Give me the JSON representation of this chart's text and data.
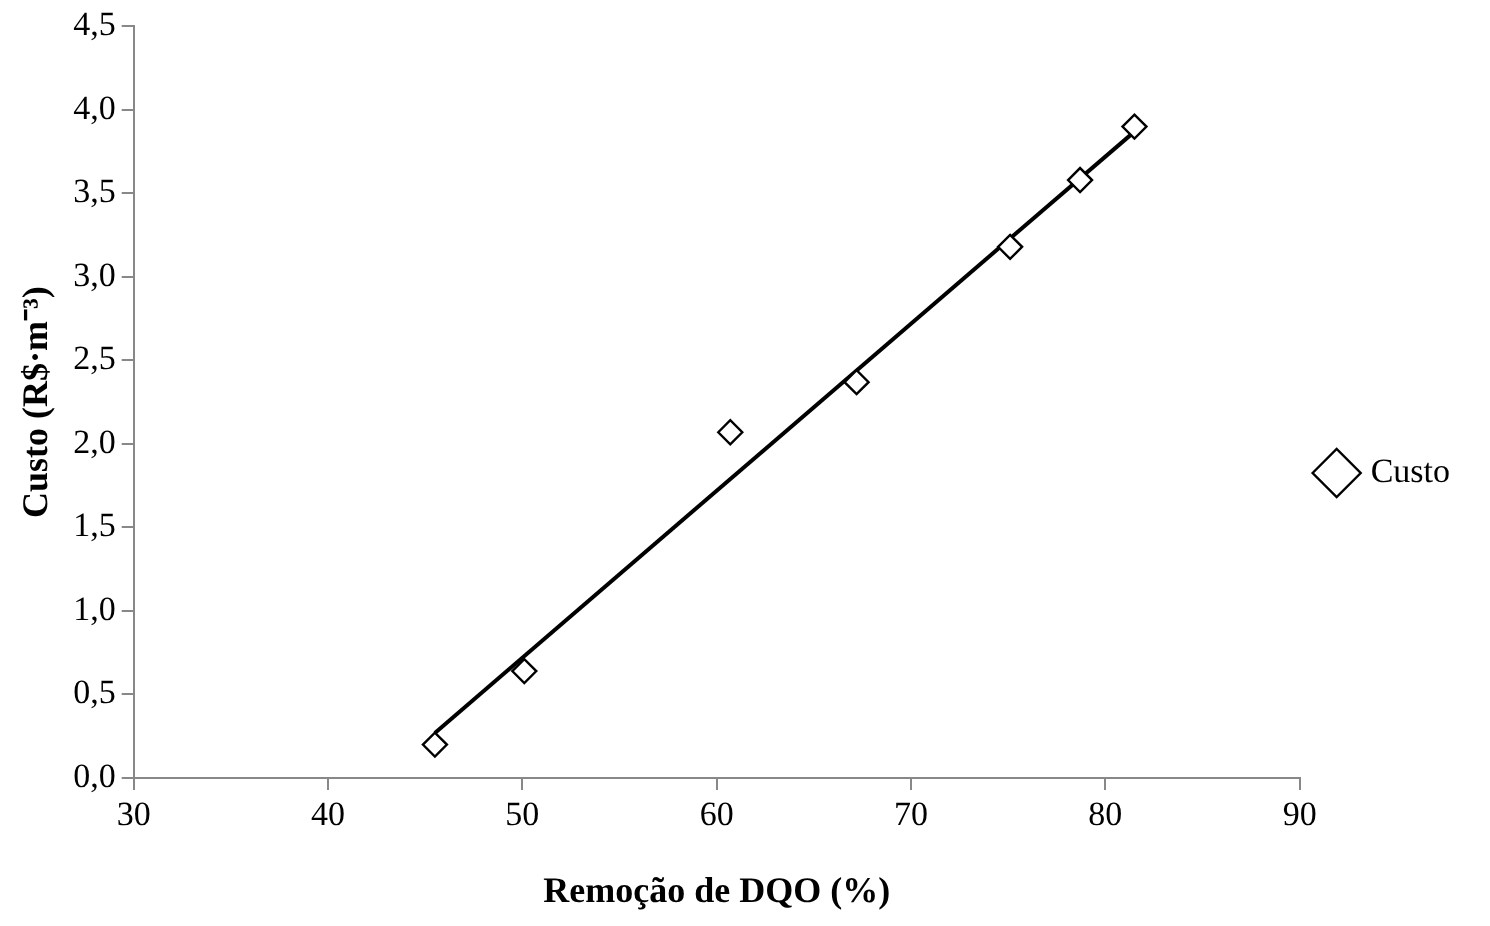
{
  "chart_data": {
    "type": "scatter",
    "xlabel": "Remoção de DQO (%)",
    "ylabel": "Custo (R$·m⁻³)",
    "xlim": [
      30,
      90
    ],
    "xticks": [
      30,
      40,
      50,
      60,
      70,
      80,
      90
    ],
    "ylim": [
      0,
      4.5
    ],
    "yticks": [
      {
        "value": 0,
        "label": "0,0"
      },
      {
        "value": 0.5,
        "label": "0,5"
      },
      {
        "value": 1,
        "label": "1,0"
      },
      {
        "value": 1.5,
        "label": "1,5"
      },
      {
        "value": 2,
        "label": "2,0"
      },
      {
        "value": 2.5,
        "label": "2,5"
      },
      {
        "value": 3,
        "label": "3,0"
      },
      {
        "value": 3.5,
        "label": "3,5"
      },
      {
        "value": 4,
        "label": "4,0"
      },
      {
        "value": 4.5,
        "label": "4,5"
      }
    ],
    "grid": false,
    "legend": "right",
    "marker": "diamond",
    "series": [
      {
        "name": "Custo",
        "color": "#000000",
        "x": [
          45.5,
          50.1,
          60.7,
          67.2,
          75.1,
          78.7,
          81.5
        ],
        "values": [
          0.2,
          0.64,
          2.07,
          2.37,
          3.18,
          3.58,
          3.9
        ]
      },
      {
        "type": "line",
        "marker": "none",
        "color": "#000000",
        "x": [
          45.5,
          81.5
        ],
        "values": [
          0.27,
          3.87
        ]
      }
    ]
  }
}
